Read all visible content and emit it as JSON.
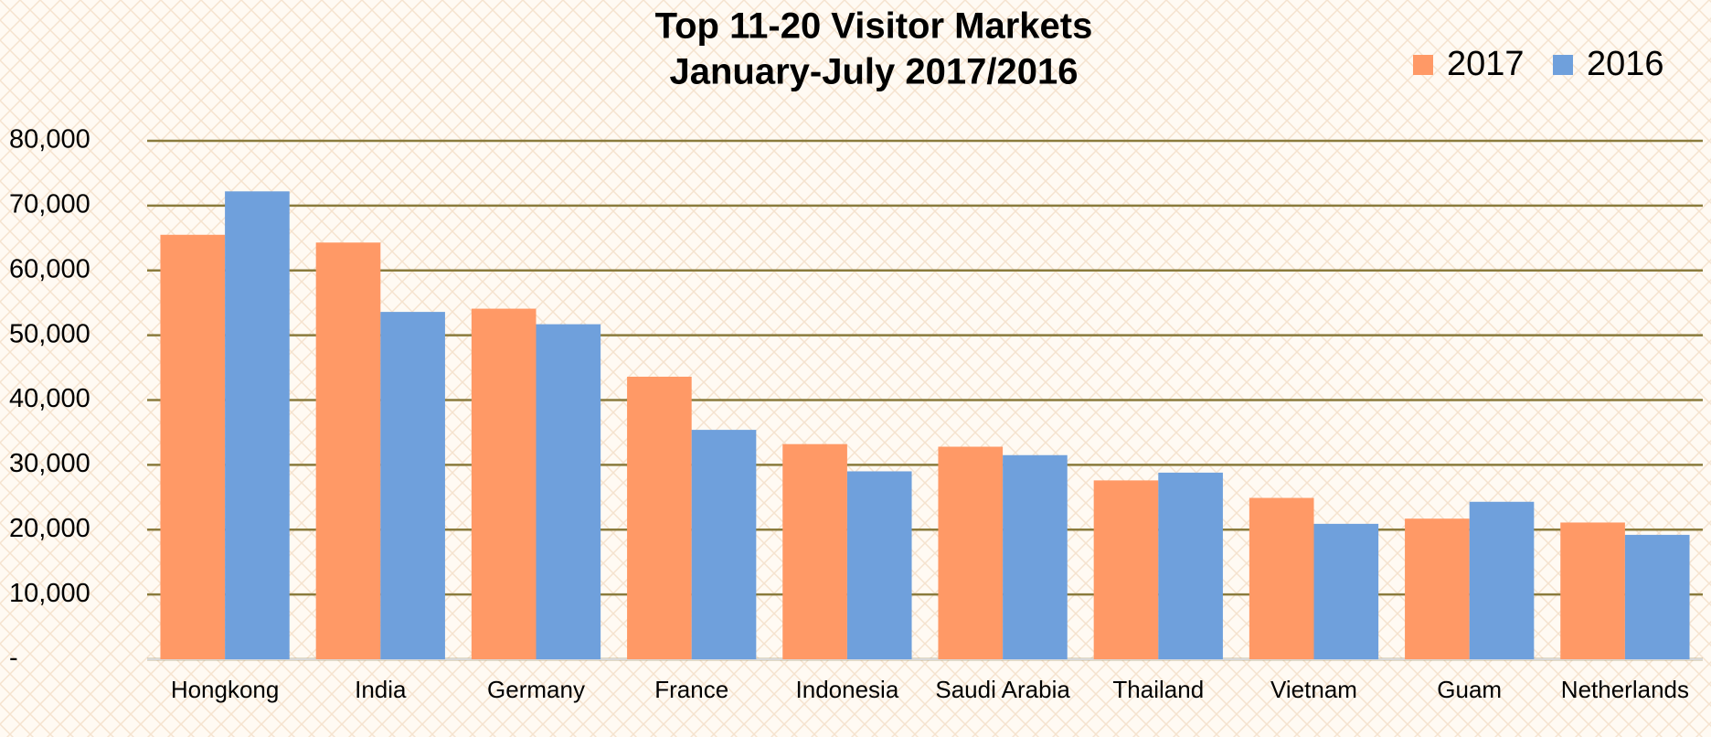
{
  "chart_data": {
    "type": "bar",
    "title": "Top 11-20 Visitor Markets",
    "subtitle": "January-July 2017/2016",
    "categories": [
      "Hongkong",
      "India",
      "Germany",
      "France",
      "Indonesia",
      "Saudi Arabia",
      "Thailand",
      "Vietnam",
      "Guam",
      "Netherlands"
    ],
    "series": [
      {
        "name": "2017",
        "color": "#ff9966",
        "values": [
          65500,
          64300,
          54100,
          43600,
          33200,
          32800,
          27600,
          24900,
          21700,
          21100
        ]
      },
      {
        "name": "2016",
        "color": "#6fa0dc",
        "values": [
          72200,
          53600,
          51700,
          35400,
          29000,
          31500,
          28800,
          20900,
          24300,
          19200
        ]
      }
    ],
    "ylim": [
      0,
      80000
    ],
    "yticks": [
      {
        "value": 0,
        "label": "-"
      },
      {
        "value": 10000,
        "label": "10,000"
      },
      {
        "value": 20000,
        "label": "20,000"
      },
      {
        "value": 30000,
        "label": "30,000"
      },
      {
        "value": 40000,
        "label": "40,000"
      },
      {
        "value": 50000,
        "label": "50,000"
      },
      {
        "value": 60000,
        "label": "60,000"
      },
      {
        "value": 70000,
        "label": "70,000"
      },
      {
        "value": 80000,
        "label": "80,000"
      }
    ],
    "grid": true,
    "legend": "top-right"
  }
}
